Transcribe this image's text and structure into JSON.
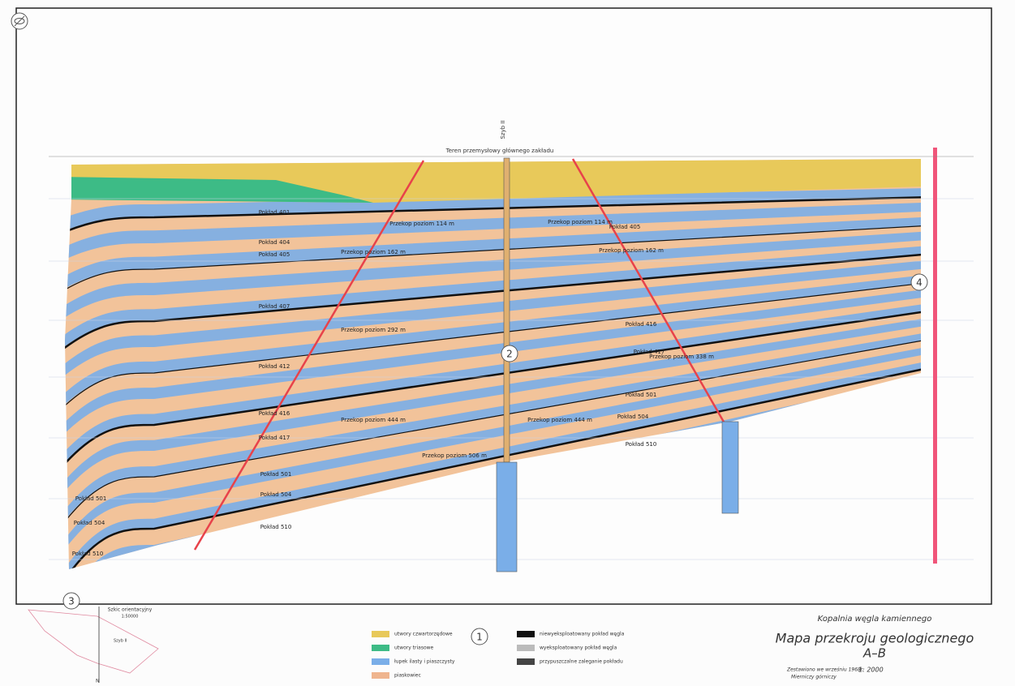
{
  "viewer": {
    "markers": [
      "1",
      "2",
      "3",
      "4"
    ]
  },
  "title_block": {
    "mine": "Kopalnia węgla kamiennego",
    "title": "Mapa przekroju geologicznego",
    "section": "A–B",
    "drawn": "Zestawiono we wrześniu 1968r.",
    "surveyor": "Mierniczy górniczy",
    "scale": "1: 2000"
  },
  "inset": {
    "title": "Szkic orientacyjny",
    "scale": "1:50000",
    "shaft": "Szyb II",
    "north": "N"
  },
  "legend": [
    {
      "label": "utwory czwartorzędowe",
      "color": "#e8c95a"
    },
    {
      "label": "utwory triasowe",
      "color": "#3dbb86"
    },
    {
      "label": "łupek ilasty i piaszczysty",
      "color": "#7aaee8"
    },
    {
      "label": "piaskowiec",
      "color": "#efb58e"
    },
    {
      "label": "niewyeksploatowany pokład węgla",
      "color": "#111111"
    },
    {
      "label": "wyeksploatowany pokład węgla",
      "color": "#bbbbbb"
    },
    {
      "label": "przypuszczalne zaleganie pokładu",
      "color": "#444444"
    }
  ],
  "section": {
    "surface": "Teren przemysłowy głównego zakładu",
    "shaft": "Szyb II",
    "cross_cuts": [
      "Przekop poziom 114 m",
      "Przekop poziom 114 m",
      "Przekop poziom 162 m",
      "Przekop poziom 162 m",
      "Przekop poziom 292 m",
      "Przekop poziom 338 m",
      "Przekop poziom 444 m",
      "Przekop poziom 444 m",
      "Przekop poziom 506 m"
    ],
    "seams": [
      "Pokład 401",
      "Pokład 404",
      "Pokład 405",
      "Pokład 407",
      "Pokład 412",
      "Pokład 416",
      "Pokład 417",
      "Pokład 501",
      "Pokład 504",
      "Pokład 510",
      "Pokład 405",
      "Pokład 416",
      "Pokład 417",
      "Pokład 501",
      "Pokład 504",
      "Pokład 510",
      "Pokład 501",
      "Pokład 504",
      "Pokład 510"
    ]
  }
}
